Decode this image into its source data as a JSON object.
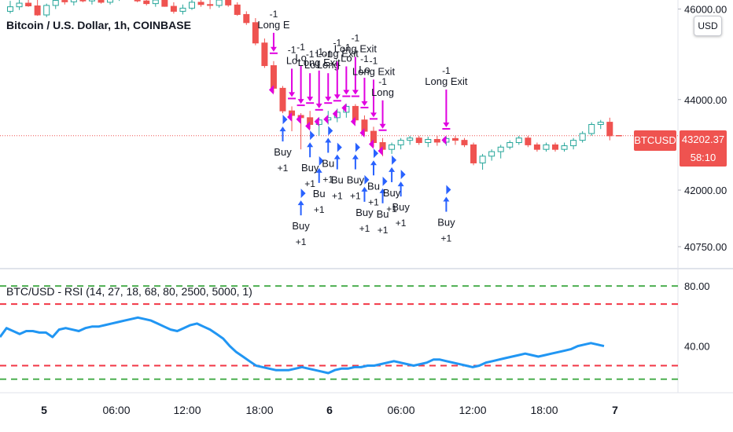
{
  "main_title": "Bitcoin / U.S. Dollar, 1h, COINBASE",
  "currency_button": "USD",
  "last_price": {
    "symbol": "BTCUSD",
    "price": "43202.37",
    "countdown": "58:10"
  },
  "colors": {
    "up": "#26a69a",
    "down": "#ef5350",
    "buy_arrow": "#2962ff",
    "exit_arrow": "#e000e0",
    "rsi_line": "#2196f3",
    "green_level": "#4caf50",
    "red_level": "#f23645"
  },
  "chart_data": [
    {
      "type": "candlestick",
      "ylim": [
        40300,
        46200
      ],
      "price_ticks": [
        "46000.00",
        "44000.00",
        "42000.00",
        "40750.00"
      ],
      "x_ticks": [
        "5",
        "06:00",
        "12:00",
        "18:00",
        "6",
        "06:00",
        "12:00",
        "18:00",
        "7"
      ],
      "last_price_line": 43202.37,
      "candles": [
        {
          "o": 45950,
          "h": 46180,
          "l": 45900,
          "c": 46050
        },
        {
          "o": 46050,
          "h": 46250,
          "l": 45980,
          "c": 46130
        },
        {
          "o": 46130,
          "h": 46300,
          "l": 46050,
          "c": 46070
        },
        {
          "o": 46070,
          "h": 46200,
          "l": 45850,
          "c": 45870
        },
        {
          "o": 45870,
          "h": 46120,
          "l": 45820,
          "c": 46080
        },
        {
          "o": 46080,
          "h": 46260,
          "l": 46000,
          "c": 46190
        },
        {
          "o": 46190,
          "h": 46300,
          "l": 46100,
          "c": 46160
        },
        {
          "o": 46160,
          "h": 46280,
          "l": 46080,
          "c": 46230
        },
        {
          "o": 46230,
          "h": 46320,
          "l": 46150,
          "c": 46180
        },
        {
          "o": 46180,
          "h": 46300,
          "l": 46100,
          "c": 46260
        },
        {
          "o": 46260,
          "h": 46330,
          "l": 46120,
          "c": 46150
        },
        {
          "o": 46150,
          "h": 46280,
          "l": 46100,
          "c": 46240
        },
        {
          "o": 46240,
          "h": 46350,
          "l": 46180,
          "c": 46290
        },
        {
          "o": 46290,
          "h": 46350,
          "l": 46200,
          "c": 46250
        },
        {
          "o": 46250,
          "h": 46340,
          "l": 46150,
          "c": 46180
        },
        {
          "o": 46180,
          "h": 46300,
          "l": 46080,
          "c": 46120
        },
        {
          "o": 46120,
          "h": 46260,
          "l": 46050,
          "c": 46200
        },
        {
          "o": 46200,
          "h": 46300,
          "l": 46050,
          "c": 46060
        },
        {
          "o": 46060,
          "h": 46150,
          "l": 45900,
          "c": 45950
        },
        {
          "o": 45950,
          "h": 46100,
          "l": 45880,
          "c": 46020
        },
        {
          "o": 46020,
          "h": 46200,
          "l": 45980,
          "c": 46150
        },
        {
          "o": 46150,
          "h": 46300,
          "l": 46050,
          "c": 46100
        },
        {
          "o": 46100,
          "h": 46200,
          "l": 46000,
          "c": 46080
        },
        {
          "o": 46080,
          "h": 46250,
          "l": 46030,
          "c": 46200
        },
        {
          "o": 46200,
          "h": 46300,
          "l": 46050,
          "c": 46090
        },
        {
          "o": 46090,
          "h": 46150,
          "l": 45850,
          "c": 45880
        },
        {
          "o": 45880,
          "h": 45950,
          "l": 45650,
          "c": 45700
        },
        {
          "o": 45700,
          "h": 45800,
          "l": 45200,
          "c": 45250
        },
        {
          "o": 45250,
          "h": 45350,
          "l": 44700,
          "c": 44750
        },
        {
          "o": 44750,
          "h": 44850,
          "l": 44150,
          "c": 44250
        },
        {
          "o": 44250,
          "h": 44300,
          "l": 43700,
          "c": 43750
        },
        {
          "o": 43750,
          "h": 43850,
          "l": 43300,
          "c": 43650
        },
        {
          "o": 43650,
          "h": 43700,
          "l": 42900,
          "c": 43600
        },
        {
          "o": 43600,
          "h": 43750,
          "l": 43350,
          "c": 43450
        },
        {
          "o": 43450,
          "h": 43600,
          "l": 43200,
          "c": 43550
        },
        {
          "o": 43550,
          "h": 43750,
          "l": 43450,
          "c": 43600
        },
        {
          "o": 43600,
          "h": 43800,
          "l": 43500,
          "c": 43720
        },
        {
          "o": 43720,
          "h": 43900,
          "l": 43600,
          "c": 43850
        },
        {
          "o": 43850,
          "h": 43900,
          "l": 43500,
          "c": 43550
        },
        {
          "o": 43550,
          "h": 43650,
          "l": 43200,
          "c": 43300
        },
        {
          "o": 43300,
          "h": 43400,
          "l": 42950,
          "c": 43050
        },
        {
          "o": 43050,
          "h": 43150,
          "l": 42750,
          "c": 42900
        },
        {
          "o": 42900,
          "h": 43050,
          "l": 42800,
          "c": 43000
        },
        {
          "o": 43000,
          "h": 43150,
          "l": 42900,
          "c": 43100
        },
        {
          "o": 43100,
          "h": 43200,
          "l": 43000,
          "c": 43150
        },
        {
          "o": 43150,
          "h": 43200,
          "l": 43000,
          "c": 43050
        },
        {
          "o": 43050,
          "h": 43180,
          "l": 42950,
          "c": 43120
        },
        {
          "o": 43120,
          "h": 43200,
          "l": 42980,
          "c": 43060
        },
        {
          "o": 43060,
          "h": 43180,
          "l": 42980,
          "c": 43140
        },
        {
          "o": 43140,
          "h": 43200,
          "l": 43000,
          "c": 43100
        },
        {
          "o": 43100,
          "h": 43150,
          "l": 42950,
          "c": 43000
        },
        {
          "o": 43000,
          "h": 43050,
          "l": 42550,
          "c": 42600
        },
        {
          "o": 42600,
          "h": 42800,
          "l": 42450,
          "c": 42750
        },
        {
          "o": 42750,
          "h": 42900,
          "l": 42650,
          "c": 42850
        },
        {
          "o": 42850,
          "h": 43000,
          "l": 42700,
          "c": 42950
        },
        {
          "o": 42950,
          "h": 43100,
          "l": 42900,
          "c": 43050
        },
        {
          "o": 43050,
          "h": 43200,
          "l": 43000,
          "c": 43150
        },
        {
          "o": 43150,
          "h": 43200,
          "l": 42950,
          "c": 43000
        },
        {
          "o": 43000,
          "h": 43050,
          "l": 42850,
          "c": 42900
        },
        {
          "o": 42900,
          "h": 43050,
          "l": 42850,
          "c": 43000
        },
        {
          "o": 43000,
          "h": 43050,
          "l": 42850,
          "c": 42900
        },
        {
          "o": 42900,
          "h": 43050,
          "l": 42850,
          "c": 42980
        },
        {
          "o": 42980,
          "h": 43150,
          "l": 42900,
          "c": 43100
        },
        {
          "o": 43100,
          "h": 43300,
          "l": 43050,
          "c": 43250
        },
        {
          "o": 43250,
          "h": 43500,
          "l": 43200,
          "c": 43450
        },
        {
          "o": 43450,
          "h": 43550,
          "l": 43350,
          "c": 43500
        },
        {
          "o": 43500,
          "h": 43600,
          "l": 43100,
          "c": 43200
        }
      ],
      "trailing_candle": {
        "o": 43200,
        "h": 43210,
        "l": 43190,
        "c": 43202
      },
      "buy_signals": [
        {
          "i": 30,
          "stack": 0,
          "text": "Buy",
          "qty": "+1"
        },
        {
          "i": 32,
          "stack": 2,
          "text": "Buy",
          "qty": "+1"
        },
        {
          "i": 33,
          "stack": 0,
          "text": "Buy",
          "qty": "+1"
        },
        {
          "i": 34,
          "stack": 1,
          "text": "Bu",
          "qty": "+1"
        },
        {
          "i": 35,
          "stack": 0,
          "text": "Bu",
          "qty": "+1"
        },
        {
          "i": 36,
          "stack": 1,
          "text": "Bu",
          "qty": "+1"
        },
        {
          "i": 38,
          "stack": 1,
          "text": "Buy",
          "qty": "+1"
        },
        {
          "i": 39,
          "stack": 2,
          "text": "Buy",
          "qty": "+1"
        },
        {
          "i": 40,
          "stack": 0,
          "text": "Bu",
          "qty": "+1"
        },
        {
          "i": 41,
          "stack": 1,
          "text": "Bu",
          "qty": "+1"
        },
        {
          "i": 42,
          "stack": 0,
          "text": "Buy",
          "qty": "+1"
        },
        {
          "i": 43,
          "stack": 1,
          "text": "Buy",
          "qty": "+1"
        },
        {
          "i": 48,
          "stack": 2,
          "text": "Buy",
          "qty": "+1"
        }
      ],
      "exit_signals": [
        {
          "i": 29,
          "stack": 0,
          "text": "Long E",
          "qty": "-1"
        },
        {
          "i": 31,
          "stack": 1,
          "text": "Lo",
          "qty": "-1"
        },
        {
          "i": 32,
          "stack": 2,
          "text": "Lo",
          "qty": "-1"
        },
        {
          "i": 33,
          "stack": 1,
          "text": "Lo",
          "qty": "-1"
        },
        {
          "i": 34,
          "stack": 2,
          "text": "Long Exit",
          "qty": "-1"
        },
        {
          "i": 35,
          "stack": 1,
          "text": "Long",
          "qty": "-1"
        },
        {
          "i": 36,
          "stack": 2,
          "text": "Long Exit",
          "qty": "-1"
        },
        {
          "i": 37,
          "stack": 1,
          "text": "Lo",
          "qty": "-1"
        },
        {
          "i": 38,
          "stack": 2,
          "text": "Long Exit",
          "qty": "-1"
        },
        {
          "i": 39,
          "stack": 1,
          "text": "Lo",
          "qty": "-1"
        },
        {
          "i": 40,
          "stack": 2,
          "text": "Long Exit",
          "qty": "-1"
        },
        {
          "i": 41,
          "stack": 1,
          "text": "Long",
          "qty": "-1"
        },
        {
          "i": 48,
          "stack": 2,
          "text": "Long Exit",
          "qty": "-1"
        }
      ]
    },
    {
      "type": "line",
      "title": "BTC/USD - RSI (14, 27, 18, 68, 80, 2500, 5000, 1)",
      "ylim": [
        10,
        90
      ],
      "y_ticks": [
        "80.00",
        "40.00"
      ],
      "levels": {
        "overbought_high": 80,
        "overbought": 68,
        "oversold": 27,
        "oversold_low": 18
      },
      "values": [
        46,
        52,
        50,
        48,
        50,
        50,
        49,
        49,
        46,
        51,
        52,
        51,
        50,
        52,
        53,
        53,
        54,
        55,
        56,
        57,
        58,
        59,
        58,
        57,
        55,
        53,
        51,
        50,
        52,
        54,
        55,
        53,
        51,
        48,
        45,
        40,
        36,
        33,
        30,
        27,
        26,
        25,
        24,
        24,
        24,
        25,
        26,
        25,
        24,
        23,
        22,
        24,
        25,
        25,
        26,
        26,
        27,
        27,
        28,
        29,
        30,
        29,
        28,
        27,
        28,
        29,
        31,
        31,
        30,
        29,
        28,
        27,
        26,
        27,
        29,
        30,
        31,
        32,
        33,
        34,
        35,
        34,
        33,
        34,
        35,
        36,
        37,
        38,
        40,
        41,
        42,
        41,
        40
      ]
    }
  ]
}
